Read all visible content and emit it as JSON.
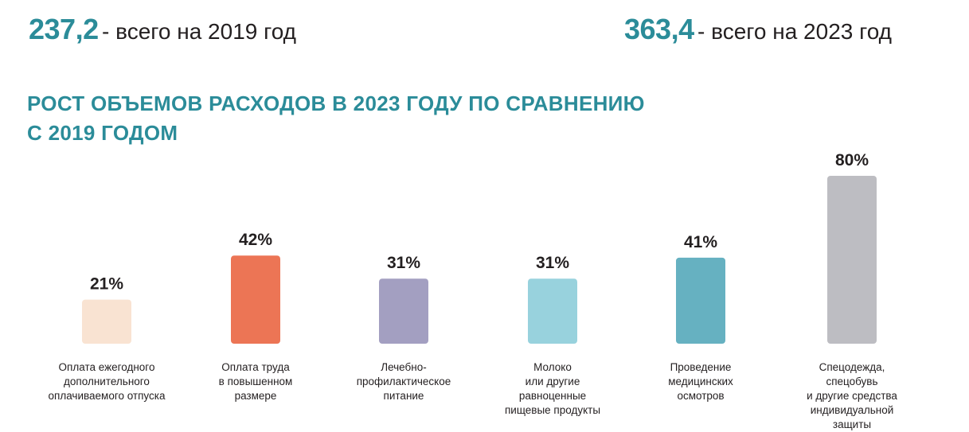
{
  "header": {
    "left": {
      "value": "237,2",
      "text": "- всего на 2019 год"
    },
    "right": {
      "value": "363,4",
      "text": "- всего на 2023 год"
    },
    "accent_color": "#2b8c99"
  },
  "chart_data": {
    "type": "bar",
    "title": "РОСТ ОБЪЕМОВ РАСХОДОВ В 2023 ГОДУ ПО СРАВНЕНИЮ С 2019 ГОДОМ",
    "title_lines": [
      "РОСТ ОБЪЕМОВ РАСХОДОВ В 2023 ГОДУ ПО СРАВНЕНИЮ",
      "С 2019 ГОДОМ"
    ],
    "categories": [
      "Оплата ежегодного\nдополнительного\nоплачиваемого отпуска",
      "Оплата труда\nв повышенном\nразмере",
      "Лечебно-\nпрофилактическое\nпитание",
      "Молоко\nили другие\nравноценные\nпищевые продукты",
      "Проведение\nмедицинских\nосмотров",
      "Спецодежда,\nспецобувь\nи другие средства\nиндивидуальной\nзащиты"
    ],
    "values": [
      21,
      42,
      31,
      31,
      41,
      80
    ],
    "value_labels": [
      "21%",
      "42%",
      "31%",
      "31%",
      "41%",
      "80%"
    ],
    "colors": [
      "#f9e3d2",
      "#ec7555",
      "#a39fc1",
      "#98d2dd",
      "#66b1c1",
      "#bdbdc2"
    ],
    "ylim": [
      0,
      80
    ],
    "grid": false,
    "legend": "none"
  }
}
